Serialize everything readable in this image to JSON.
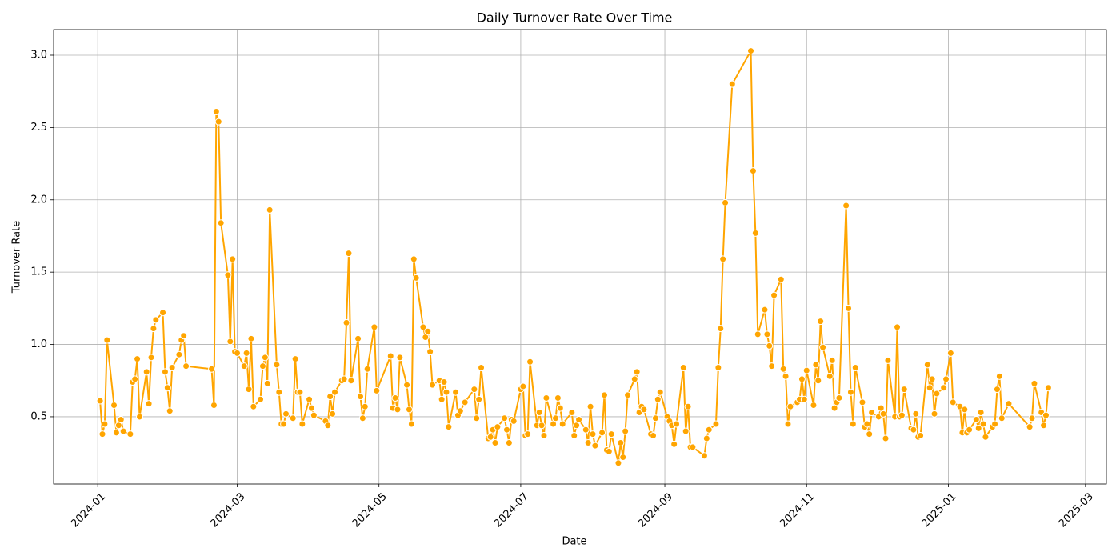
{
  "chart_data": {
    "type": "line",
    "title": "Daily Turnover Rate Over Time",
    "x_label": "Date",
    "y_label": "Turnover Rate",
    "x": [
      1,
      2,
      3,
      4,
      7,
      8,
      9,
      10,
      11,
      14,
      15,
      16,
      17,
      18,
      21,
      22,
      23,
      24,
      25,
      28,
      29,
      30,
      31,
      32,
      35,
      36,
      37,
      38,
      49,
      50,
      51,
      52,
      53,
      56,
      57,
      58,
      59,
      60,
      63,
      64,
      65,
      66,
      67,
      70,
      71,
      72,
      73,
      74,
      77,
      78,
      79,
      80,
      81,
      84,
      85,
      86,
      87,
      88,
      91,
      92,
      93,
      98,
      99,
      100,
      101,
      102,
      105,
      106,
      107,
      108,
      109,
      112,
      113,
      114,
      115,
      116,
      119,
      120,
      126,
      127,
      128,
      129,
      130,
      133,
      134,
      135,
      136,
      137,
      140,
      141,
      142,
      143,
      144,
      147,
      148,
      149,
      150,
      151,
      154,
      155,
      156,
      158,
      162,
      163,
      164,
      165,
      168,
      169,
      170,
      171,
      172,
      175,
      176,
      177,
      178,
      179,
      182,
      183,
      184,
      185,
      186,
      189,
      190,
      191,
      192,
      193,
      196,
      197,
      198,
      199,
      200,
      204,
      205,
      206,
      207,
      210,
      211,
      212,
      213,
      214,
      217,
      218,
      219,
      220,
      221,
      224,
      225,
      226,
      227,
      228,
      231,
      232,
      233,
      234,
      235,
      238,
      239,
      240,
      241,
      242,
      245,
      246,
      247,
      248,
      249,
      252,
      253,
      254,
      255,
      256,
      261,
      262,
      263,
      266,
      267,
      268,
      269,
      270,
      273,
      281,
      282,
      283,
      284,
      287,
      288,
      289,
      290,
      291,
      294,
      295,
      296,
      297,
      298,
      301,
      302,
      303,
      304,
      305,
      308,
      309,
      310,
      311,
      312,
      315,
      316,
      317,
      318,
      319,
      322,
      323,
      324,
      325,
      326,
      329,
      330,
      331,
      332,
      333,
      336,
      337,
      338,
      339,
      340,
      343,
      344,
      345,
      346,
      347,
      350,
      351,
      352,
      353,
      354,
      357,
      358,
      359,
      360,
      361,
      364,
      365,
      367,
      368,
      371,
      372,
      373,
      374,
      375,
      378,
      379,
      380,
      381,
      382,
      385,
      386,
      387,
      388,
      389,
      392,
      401,
      402,
      403,
      406,
      407,
      408,
      409
    ],
    "series": [
      {
        "name": "Turnover Rate",
        "color": "#FFA500",
        "values": [
          0.61,
          0.38,
          0.45,
          1.03,
          0.58,
          0.39,
          0.44,
          0.48,
          0.4,
          0.38,
          0.74,
          0.76,
          0.9,
          0.5,
          0.81,
          0.59,
          0.91,
          1.11,
          1.17,
          1.22,
          0.81,
          0.7,
          0.54,
          0.84,
          0.93,
          1.03,
          1.06,
          0.85,
          0.83,
          0.58,
          2.61,
          2.54,
          1.84,
          1.48,
          1.02,
          1.59,
          0.95,
          0.94,
          0.85,
          0.94,
          0.69,
          1.04,
          0.57,
          0.62,
          0.85,
          0.91,
          0.73,
          1.93,
          0.86,
          0.67,
          0.45,
          0.45,
          0.52,
          0.49,
          0.9,
          0.67,
          0.67,
          0.45,
          0.62,
          0.56,
          0.51,
          0.47,
          0.44,
          0.64,
          0.52,
          0.67,
          0.75,
          0.76,
          1.15,
          1.63,
          0.75,
          1.04,
          0.64,
          0.49,
          0.57,
          0.83,
          1.12,
          0.68,
          0.92,
          0.56,
          0.63,
          0.55,
          0.91,
          0.72,
          0.55,
          0.45,
          1.59,
          1.46,
          1.12,
          1.05,
          1.09,
          0.95,
          0.72,
          0.75,
          0.62,
          0.74,
          0.67,
          0.43,
          0.67,
          0.51,
          0.54,
          0.6,
          0.69,
          0.49,
          0.62,
          0.84,
          0.35,
          0.36,
          0.41,
          0.32,
          0.43,
          0.49,
          0.41,
          0.32,
          0.48,
          0.47,
          0.69,
          0.71,
          0.37,
          0.38,
          0.88,
          0.44,
          0.53,
          0.44,
          0.37,
          0.63,
          0.45,
          0.49,
          0.63,
          0.56,
          0.45,
          0.53,
          0.37,
          0.44,
          0.48,
          0.41,
          0.32,
          0.57,
          0.38,
          0.3,
          0.39,
          0.65,
          0.27,
          0.26,
          0.38,
          0.18,
          0.32,
          0.22,
          0.4,
          0.65,
          0.76,
          0.81,
          0.53,
          0.57,
          0.55,
          0.38,
          0.37,
          0.49,
          0.62,
          0.67,
          0.5,
          0.47,
          0.44,
          0.31,
          0.45,
          0.84,
          0.4,
          0.57,
          0.29,
          0.29,
          0.23,
          0.35,
          0.41,
          0.45,
          0.84,
          1.11,
          1.59,
          1.98,
          2.8,
          3.03,
          2.2,
          1.77,
          1.07,
          1.24,
          1.07,
          0.99,
          0.85,
          1.34,
          1.45,
          0.83,
          0.78,
          0.45,
          0.57,
          0.6,
          0.62,
          0.76,
          0.62,
          0.82,
          0.58,
          0.86,
          0.75,
          1.16,
          0.98,
          0.78,
          0.89,
          0.56,
          0.6,
          0.63,
          1.96,
          1.25,
          0.67,
          0.45,
          0.84,
          0.6,
          0.43,
          0.45,
          0.38,
          0.53,
          0.5,
          0.56,
          0.52,
          0.35,
          0.89,
          0.5,
          1.12,
          0.5,
          0.51,
          0.69,
          0.42,
          0.41,
          0.52,
          0.36,
          0.37,
          0.86,
          0.7,
          0.76,
          0.52,
          0.66,
          0.7,
          0.76,
          0.94,
          0.6,
          0.57,
          0.39,
          0.55,
          0.39,
          0.41,
          0.48,
          0.42,
          0.53,
          0.45,
          0.36,
          0.43,
          0.45,
          0.69,
          0.78,
          0.49,
          0.59,
          0.43,
          0.49,
          0.73,
          0.53,
          0.44,
          0.51,
          0.7
        ]
      }
    ],
    "xlim": [
      -19,
      434
    ],
    "xticks": [
      {
        "value": 0,
        "label": "2024-01"
      },
      {
        "value": 60,
        "label": "2024-03"
      },
      {
        "value": 121,
        "label": "2024-05"
      },
      {
        "value": 182,
        "label": "2024-07"
      },
      {
        "value": 244,
        "label": "2024-09"
      },
      {
        "value": 305,
        "label": "2024-11"
      },
      {
        "value": 366,
        "label": "2025-01"
      },
      {
        "value": 425,
        "label": "2025-03"
      }
    ],
    "ylim": [
      0.035,
      3.177
    ],
    "yticks": [
      0.5,
      {
        "value": 1,
        "label": "1.0"
      },
      1.5,
      {
        "value": 2,
        "label": "2.0"
      },
      2.5,
      {
        "value": 3,
        "label": "3.0"
      }
    ],
    "grid": true
  }
}
